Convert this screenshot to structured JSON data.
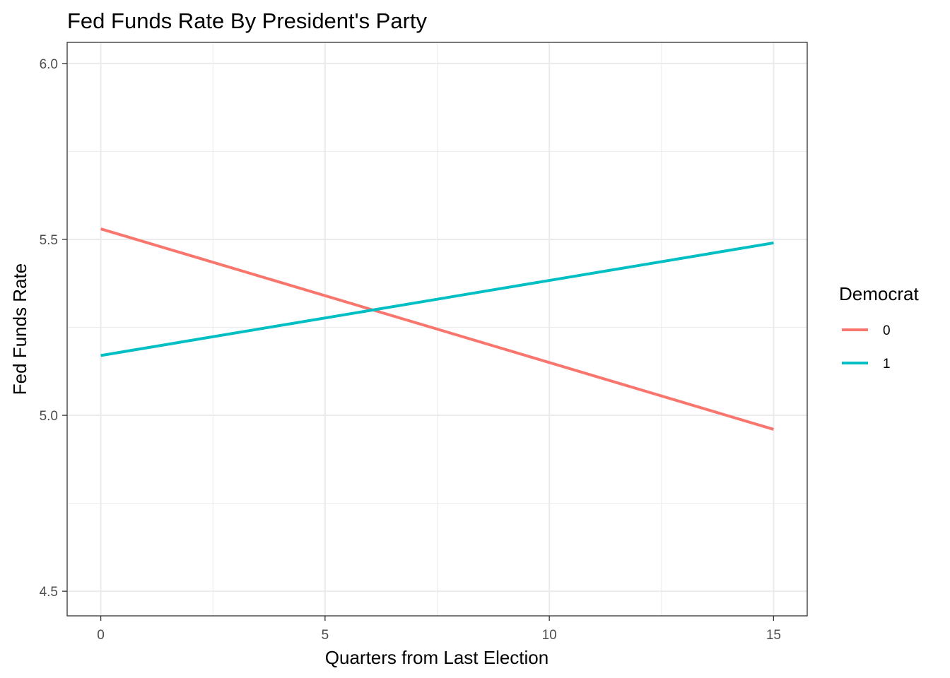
{
  "chart_data": {
    "type": "line",
    "title": "Fed Funds Rate By President's Party",
    "xlabel": "Quarters from Last Election",
    "ylabel": "Fed Funds Rate",
    "xlim": [
      -0.75,
      15.75
    ],
    "ylim": [
      4.43,
      6.06
    ],
    "x_ticks": [
      0,
      5,
      10,
      15
    ],
    "x_tick_labels": [
      "0",
      "5",
      "10",
      "15"
    ],
    "y_ticks": [
      4.5,
      5.0,
      5.5,
      6.0
    ],
    "y_tick_labels": [
      "4.5",
      "5.0",
      "5.5",
      "6.0"
    ],
    "grid": true,
    "legend": {
      "title": "Democrat",
      "position": "right"
    },
    "series": [
      {
        "name": "0",
        "color": "#F8766D",
        "x": [
          0,
          15
        ],
        "y": [
          5.53,
          4.96
        ]
      },
      {
        "name": "1",
        "color": "#00BFC4",
        "x": [
          0,
          15
        ],
        "y": [
          5.17,
          5.49
        ]
      }
    ]
  }
}
